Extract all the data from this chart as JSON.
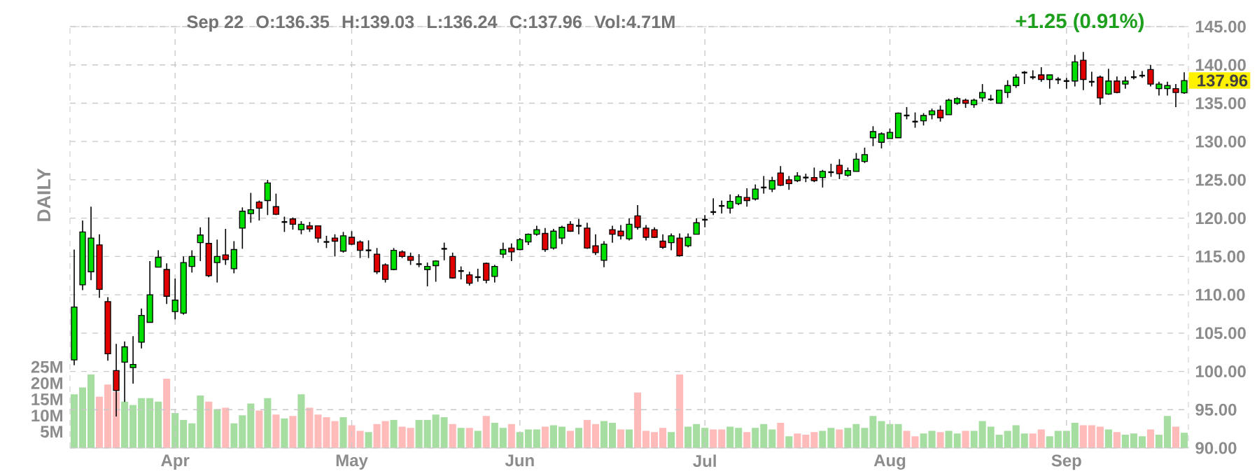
{
  "chart_data": {
    "type": "candlestick",
    "y2label": "DAILY",
    "annotations": [
      "Sep 22",
      "O:136.35",
      "H:139.03",
      "L:136.24",
      "C:137.96",
      "Vol:4.71M",
      "+1.25 (0.91%)",
      "137.96"
    ],
    "categories": [
      null,
      null,
      null,
      null,
      null,
      null,
      null,
      null,
      null,
      null,
      null,
      null,
      "Apr",
      null,
      null,
      null,
      null,
      null,
      null,
      null,
      null,
      null,
      null,
      null,
      null,
      null,
      null,
      null,
      null,
      null,
      null,
      null,
      null,
      "May",
      null,
      null,
      null,
      null,
      null,
      null,
      null,
      null,
      null,
      null,
      null,
      null,
      null,
      null,
      null,
      null,
      null,
      null,
      null,
      "Jun",
      null,
      null,
      null,
      null,
      null,
      null,
      null,
      null,
      null,
      null,
      null,
      null,
      null,
      null,
      null,
      null,
      null,
      null,
      null,
      null,
      null,
      "Jul",
      null,
      null,
      null,
      null,
      null,
      null,
      null,
      null,
      null,
      null,
      null,
      null,
      null,
      null,
      null,
      null,
      null,
      null,
      null,
      null,
      null,
      "Aug",
      null,
      null,
      null,
      null,
      null,
      null,
      null,
      null,
      null,
      null,
      null,
      null,
      null,
      null,
      null,
      null,
      null,
      null,
      null,
      null,
      "Sep",
      null,
      null,
      null,
      null,
      null,
      null,
      null,
      null,
      null,
      null,
      null,
      null,
      null,
      null
    ],
    "ohlc": [
      [
        101.5,
        115.9,
        100.8,
        108.4
      ],
      [
        111.3,
        119.7,
        110.6,
        118.2
      ],
      [
        113.0,
        121.5,
        111.9,
        117.4
      ],
      [
        116.5,
        117.9,
        109.6,
        110.7
      ],
      [
        109.1,
        109.7,
        101.4,
        102.3
      ],
      [
        100.1,
        103.6,
        94.1,
        97.5
      ],
      [
        101.2,
        103.9,
        96.0,
        103.2
      ],
      [
        100.5,
        104.6,
        98.4,
        100.9
      ],
      [
        103.8,
        108.2,
        103.0,
        107.3
      ],
      [
        106.4,
        114.4,
        106.4,
        110.0
      ],
      [
        113.6,
        115.8,
        113.6,
        114.9
      ],
      [
        113.3,
        114.1,
        108.8,
        109.8
      ],
      [
        107.8,
        112.1,
        106.8,
        109.3
      ],
      [
        107.6,
        115.0,
        107.4,
        114.2
      ],
      [
        113.7,
        115.8,
        112.9,
        115.0
      ],
      [
        116.8,
        118.8,
        114.4,
        117.8
      ],
      [
        116.7,
        120.1,
        112.3,
        112.5
      ],
      [
        114.2,
        117.2,
        111.6,
        115.0
      ],
      [
        115.2,
        118.6,
        113.9,
        114.6
      ],
      [
        113.4,
        117.0,
        112.8,
        115.9
      ],
      [
        118.7,
        121.4,
        116.0,
        120.9
      ],
      [
        120.6,
        123.3,
        119.4,
        121.1
      ],
      [
        122.1,
        122.3,
        119.7,
        121.3
      ],
      [
        122.3,
        125.0,
        120.4,
        124.6
      ],
      [
        121.5,
        123.2,
        120.4,
        120.5
      ],
      [
        119.5,
        120.2,
        118.2,
        119.5
      ],
      [
        119.9,
        120.1,
        118.5,
        119.2
      ],
      [
        118.5,
        119.6,
        117.9,
        119.2
      ],
      [
        119.0,
        119.5,
        118.2,
        118.6
      ],
      [
        119.0,
        119.0,
        116.8,
        117.4
      ],
      [
        116.9,
        117.7,
        116.1,
        116.9
      ],
      [
        117.4,
        117.9,
        115.0,
        117.0
      ],
      [
        115.7,
        118.2,
        115.5,
        117.7
      ],
      [
        117.5,
        118.3,
        116.5,
        116.6
      ],
      [
        116.9,
        117.1,
        114.8,
        115.8
      ],
      [
        115.8,
        117.1,
        114.8,
        115.8
      ],
      [
        115.3,
        116.1,
        112.7,
        113.0
      ],
      [
        113.9,
        114.1,
        111.6,
        112.0
      ],
      [
        113.3,
        116.1,
        113.2,
        115.8
      ],
      [
        115.6,
        115.8,
        114.8,
        115.0
      ],
      [
        115.0,
        115.5,
        113.9,
        114.5
      ],
      [
        114.0,
        115.3,
        113.6,
        114.0
      ],
      [
        113.3,
        114.2,
        111.1,
        113.7
      ],
      [
        113.8,
        114.5,
        111.7,
        114.4
      ],
      [
        116.0,
        116.8,
        114.5,
        116.0
      ],
      [
        115.0,
        115.5,
        112.1,
        112.2
      ],
      [
        113.1,
        113.7,
        112.0,
        113.1
      ],
      [
        112.6,
        113.0,
        111.2,
        111.5
      ],
      [
        112.3,
        113.4,
        111.7,
        112.3
      ],
      [
        114.1,
        114.2,
        111.5,
        111.9
      ],
      [
        112.4,
        113.9,
        111.6,
        113.7
      ],
      [
        115.3,
        116.8,
        114.8,
        115.9
      ],
      [
        116.1,
        116.7,
        114.4,
        115.6
      ],
      [
        115.9,
        117.4,
        115.8,
        117.2
      ],
      [
        116.9,
        118.0,
        116.5,
        117.9
      ],
      [
        117.9,
        119.0,
        117.7,
        118.5
      ],
      [
        118.0,
        118.7,
        115.6,
        115.9
      ],
      [
        116.1,
        118.6,
        115.9,
        118.3
      ],
      [
        117.4,
        119.0,
        116.6,
        118.8
      ],
      [
        119.2,
        119.6,
        118.2,
        118.3
      ],
      [
        119.0,
        119.9,
        117.9,
        119.0
      ],
      [
        118.7,
        119.4,
        116.0,
        116.1
      ],
      [
        116.4,
        117.9,
        115.2,
        115.5
      ],
      [
        114.5,
        117.0,
        113.6,
        116.6
      ],
      [
        118.5,
        119.0,
        116.8,
        117.9
      ],
      [
        118.3,
        119.1,
        117.2,
        117.7
      ],
      [
        117.3,
        120.0,
        117.1,
        119.2
      ],
      [
        120.3,
        121.7,
        118.5,
        118.8
      ],
      [
        118.7,
        119.1,
        117.1,
        117.5
      ],
      [
        118.5,
        118.8,
        117.4,
        117.5
      ],
      [
        117.0,
        117.9,
        116.0,
        116.2
      ],
      [
        116.8,
        118.0,
        115.8,
        117.7
      ],
      [
        117.4,
        118.0,
        115.0,
        115.1
      ],
      [
        116.4,
        118.0,
        116.2,
        117.5
      ],
      [
        117.9,
        120.0,
        117.9,
        119.4
      ],
      [
        119.8,
        120.4,
        118.8,
        119.8
      ],
      [
        120.8,
        122.6,
        120.4,
        120.8
      ],
      [
        121.6,
        122.3,
        120.6,
        121.6
      ],
      [
        121.3,
        123.1,
        120.6,
        122.2
      ],
      [
        121.9,
        123.1,
        121.7,
        122.8
      ],
      [
        122.7,
        123.9,
        121.5,
        122.3
      ],
      [
        122.5,
        124.4,
        122.3,
        123.8
      ],
      [
        124.0,
        125.5,
        123.2,
        124.0
      ],
      [
        123.8,
        125.4,
        123.4,
        124.9
      ],
      [
        125.9,
        126.8,
        124.2,
        124.3
      ],
      [
        125.0,
        125.5,
        123.7,
        124.5
      ],
      [
        124.9,
        126.0,
        124.7,
        125.5
      ],
      [
        125.3,
        125.8,
        124.7,
        125.3
      ],
      [
        125.3,
        126.6,
        124.7,
        124.9
      ],
      [
        125.3,
        126.3,
        124.0,
        126.1
      ],
      [
        126.0,
        127.1,
        125.4,
        126.0
      ],
      [
        126.9,
        127.7,
        125.1,
        125.8
      ],
      [
        125.6,
        126.6,
        125.4,
        126.2
      ],
      [
        126.1,
        128.5,
        126.1,
        127.7
      ],
      [
        127.4,
        129.2,
        127.2,
        128.3
      ],
      [
        130.5,
        132.0,
        129.4,
        131.3
      ],
      [
        129.9,
        131.2,
        129.1,
        131.0
      ],
      [
        130.4,
        131.7,
        130.4,
        131.2
      ],
      [
        130.5,
        133.8,
        130.5,
        133.7
      ],
      [
        133.4,
        134.5,
        132.9,
        133.4
      ],
      [
        132.6,
        133.8,
        131.8,
        132.6
      ],
      [
        132.7,
        133.7,
        132.1,
        133.4
      ],
      [
        133.5,
        134.3,
        132.9,
        134.0
      ],
      [
        134.1,
        134.7,
        132.6,
        133.1
      ],
      [
        133.5,
        135.6,
        133.5,
        135.4
      ],
      [
        135.0,
        135.8,
        134.8,
        135.6
      ],
      [
        135.4,
        135.6,
        134.4,
        135.0
      ],
      [
        134.8,
        135.6,
        134.4,
        135.4
      ],
      [
        135.7,
        137.5,
        135.2,
        136.4
      ],
      [
        135.5,
        136.1,
        135.3,
        135.5
      ],
      [
        135.0,
        136.7,
        135.0,
        136.7
      ],
      [
        136.4,
        138.0,
        135.7,
        137.3
      ],
      [
        137.3,
        138.8,
        137.0,
        138.4
      ],
      [
        139.0,
        139.2,
        137.5,
        139.0
      ],
      [
        138.4,
        139.3,
        138.1,
        138.4
      ],
      [
        138.7,
        139.7,
        137.8,
        138.1
      ],
      [
        138.1,
        138.7,
        136.9,
        138.7
      ],
      [
        138.1,
        138.4,
        137.5,
        138.1
      ],
      [
        137.9,
        138.3,
        136.9,
        137.9
      ],
      [
        137.9,
        141.3,
        137.2,
        140.4
      ],
      [
        140.6,
        141.7,
        136.7,
        138.1
      ],
      [
        137.8,
        139.1,
        137.2,
        137.8
      ],
      [
        138.4,
        138.6,
        134.8,
        135.7
      ],
      [
        136.2,
        139.5,
        136.1,
        137.9
      ],
      [
        137.9,
        138.5,
        136.3,
        136.4
      ],
      [
        137.5,
        138.5,
        136.9,
        137.9
      ],
      [
        138.4,
        139.3,
        138.1,
        138.4
      ],
      [
        138.6,
        139.2,
        138.3,
        138.6
      ],
      [
        139.4,
        140.0,
        137.2,
        137.5
      ],
      [
        136.9,
        137.8,
        136.0,
        137.5
      ],
      [
        136.9,
        137.8,
        136.0,
        137.3
      ],
      [
        136.9,
        137.5,
        134.5,
        136.4
      ],
      [
        136.35,
        139.03,
        136.24,
        137.96
      ]
    ],
    "colors": [
      "#00e000",
      "#00e000",
      "#00e000",
      "#e00000",
      "#e00000",
      "#e00000",
      "#00e000",
      "#00e000",
      "#00e000",
      "#00e000",
      "#00e000",
      "#e00000",
      "#00e000",
      "#00e000",
      "#00e000",
      "#00e000",
      "#e00000",
      "#00e000",
      "#e00000",
      "#00e000",
      "#00e000",
      "#00e000",
      "#e00000",
      "#00e000",
      "#e00000",
      "#000000",
      "#e00000",
      "#00e000",
      "#e00000",
      "#e00000",
      "#000000",
      "#e00000",
      "#00e000",
      "#e00000",
      "#e00000",
      "#000000",
      "#e00000",
      "#e00000",
      "#00e000",
      "#e00000",
      "#e00000",
      "#000000",
      "#00e000",
      "#00e000",
      "#000000",
      "#e00000",
      "#000000",
      "#e00000",
      "#000000",
      "#e00000",
      "#00e000",
      "#00e000",
      "#e00000",
      "#00e000",
      "#00e000",
      "#00e000",
      "#e00000",
      "#00e000",
      "#00e000",
      "#e00000",
      "#000000",
      "#e00000",
      "#e00000",
      "#00e000",
      "#e00000",
      "#e00000",
      "#00e000",
      "#e00000",
      "#e00000",
      "#e00000",
      "#e00000",
      "#00e000",
      "#e00000",
      "#00e000",
      "#00e000",
      "#000000",
      "#000000",
      "#000000",
      "#00e000",
      "#00e000",
      "#e00000",
      "#00e000",
      "#000000",
      "#00e000",
      "#e00000",
      "#e00000",
      "#00e000",
      "#000000",
      "#e00000",
      "#00e000",
      "#000000",
      "#e00000",
      "#00e000",
      "#00e000",
      "#00e000",
      "#00e000",
      "#00e000",
      "#00e000",
      "#00e000",
      "#000000",
      "#000000",
      "#00e000",
      "#00e000",
      "#e00000",
      "#00e000",
      "#00e000",
      "#e00000",
      "#00e000",
      "#00e000",
      "#000000",
      "#00e000",
      "#00e000",
      "#00e000",
      "#000000",
      "#000000",
      "#e00000",
      "#00e000",
      "#000000",
      "#000000",
      "#00e000",
      "#e00000",
      "#000000",
      "#e00000",
      "#00e000",
      "#e00000",
      "#00e000",
      "#000000",
      "#000000",
      "#e00000",
      "#00e000",
      "#00e000",
      "#e00000",
      "#00e000"
    ],
    "series": [
      {
        "type": "bar",
        "axis": "y2",
        "values": [
          16.6,
          18.7,
          22.7,
          15.8,
          19.6,
          17.3,
          14.3,
          13.3,
          15.4,
          15.4,
          14.3,
          21.4,
          10.8,
          8.7,
          7.6,
          16.2,
          14.3,
          12.0,
          12.4,
          7.6,
          10.1,
          13.7,
          11.6,
          15.4,
          10.3,
          9.1,
          9.9,
          16.6,
          12.4,
          10.3,
          9.5,
          8.3,
          9.5,
          7.0,
          5.3,
          4.9,
          7.4,
          8.3,
          8.7,
          6.6,
          6.2,
          8.7,
          8.7,
          10.3,
          9.5,
          7.4,
          6.2,
          6.2,
          5.3,
          9.9,
          7.8,
          6.2,
          7.4,
          4.9,
          5.7,
          5.7,
          6.6,
          7.0,
          6.6,
          5.3,
          6.2,
          8.7,
          7.4,
          8.3,
          7.8,
          5.7,
          5.7,
          17.1,
          5.3,
          4.9,
          6.2,
          4.9,
          22.7,
          6.6,
          7.4,
          6.2,
          5.7,
          5.7,
          6.6,
          6.2,
          4.9,
          6.2,
          7.4,
          5.7,
          7.8,
          3.6,
          4.5,
          4.1,
          4.9,
          5.3,
          6.2,
          5.7,
          6.2,
          7.4,
          6.2,
          9.9,
          8.3,
          7.4,
          7.4,
          5.3,
          3.6,
          4.5,
          5.3,
          4.9,
          5.3,
          4.5,
          5.3,
          5.3,
          8.3,
          6.6,
          4.1,
          5.3,
          7.0,
          4.5,
          4.5,
          5.7,
          3.6,
          5.3,
          5.3,
          7.8,
          7.0,
          7.0,
          6.6,
          5.7,
          4.9,
          4.1,
          4.5,
          3.6,
          5.7,
          4.1,
          9.9,
          6.6,
          4.7
        ],
        "colors": [
          "#a5dea0",
          "#a5dea0",
          "#a5dea0",
          "#ffbaba",
          "#ffbaba",
          "#ffbaba",
          "#a5dea0",
          "#a5dea0",
          "#a5dea0",
          "#a5dea0",
          "#a5dea0",
          "#ffbaba",
          "#a5dea0",
          "#a5dea0",
          "#a5dea0",
          "#a5dea0",
          "#ffbaba",
          "#a5dea0",
          "#ffbaba",
          "#a5dea0",
          "#a5dea0",
          "#a5dea0",
          "#ffbaba",
          "#a5dea0",
          "#ffbaba",
          "#a5dea0",
          "#ffbaba",
          "#a5dea0",
          "#ffbaba",
          "#ffbaba",
          "#ffbaba",
          "#ffbaba",
          "#a5dea0",
          "#ffbaba",
          "#ffbaba",
          "#a5dea0",
          "#ffbaba",
          "#ffbaba",
          "#a5dea0",
          "#ffbaba",
          "#ffbaba",
          "#a5dea0",
          "#a5dea0",
          "#a5dea0",
          "#a5dea0",
          "#ffbaba",
          "#a5dea0",
          "#ffbaba",
          "#a5dea0",
          "#ffbaba",
          "#a5dea0",
          "#a5dea0",
          "#ffbaba",
          "#a5dea0",
          "#a5dea0",
          "#a5dea0",
          "#ffbaba",
          "#a5dea0",
          "#a5dea0",
          "#ffbaba",
          "#a5dea0",
          "#ffbaba",
          "#ffbaba",
          "#a5dea0",
          "#a5dea0",
          "#ffbaba",
          "#a5dea0",
          "#ffbaba",
          "#ffbaba",
          "#ffbaba",
          "#ffbaba",
          "#a5dea0",
          "#ffbaba",
          "#a5dea0",
          "#a5dea0",
          "#a5dea0",
          "#ffbaba",
          "#ffbaba",
          "#a5dea0",
          "#a5dea0",
          "#ffbaba",
          "#a5dea0",
          "#a5dea0",
          "#a5dea0",
          "#ffbaba",
          "#a5dea0",
          "#ffbaba",
          "#ffbaba",
          "#ffbaba",
          "#a5dea0",
          "#a5dea0",
          "#ffbaba",
          "#a5dea0",
          "#a5dea0",
          "#a5dea0",
          "#a5dea0",
          "#a5dea0",
          "#a5dea0",
          "#a5dea0",
          "#ffbaba",
          "#ffbaba",
          "#a5dea0",
          "#a5dea0",
          "#ffbaba",
          "#a5dea0",
          "#a5dea0",
          "#ffbaba",
          "#a5dea0",
          "#a5dea0",
          "#a5dea0",
          "#a5dea0",
          "#a5dea0",
          "#a5dea0",
          "#a5dea0",
          "#ffbaba",
          "#ffbaba",
          "#a5dea0",
          "#a5dea0",
          "#a5dea0",
          "#a5dea0",
          "#ffbaba",
          "#ffbaba",
          "#ffbaba",
          "#a5dea0",
          "#ffbaba",
          "#a5dea0",
          "#a5dea0",
          "#a5dea0",
          "#ffbaba",
          "#a5dea0",
          "#a5dea0",
          "#ffbaba",
          "#a5dea0"
        ]
      }
    ],
    "ylim": [
      90,
      145
    ],
    "yticks": [
      {
        "value": 90,
        "label": "90.00"
      },
      {
        "value": 95,
        "label": "95.00"
      },
      {
        "value": 100,
        "label": "100.00"
      },
      {
        "value": 105,
        "label": "105.00"
      },
      {
        "value": 110,
        "label": "110.00"
      },
      {
        "value": 115,
        "label": "115.00"
      },
      {
        "value": 120,
        "label": "120.00"
      },
      {
        "value": 125,
        "label": "125.00"
      },
      {
        "value": 130,
        "label": "130.00"
      },
      {
        "value": 135,
        "label": "135.00"
      },
      {
        "value": 140,
        "label": "140.00"
      },
      {
        "value": 145,
        "label": "145.00"
      }
    ],
    "y2lim": [
      0,
      130
    ],
    "y2ticks": [
      {
        "value": 5,
        "label": "5M"
      },
      {
        "value": 10,
        "label": "10M"
      },
      {
        "value": 15,
        "label": "15M"
      },
      {
        "value": 20,
        "label": "20M"
      },
      {
        "value": 25,
        "label": "25M"
      }
    ],
    "grid": true
  }
}
